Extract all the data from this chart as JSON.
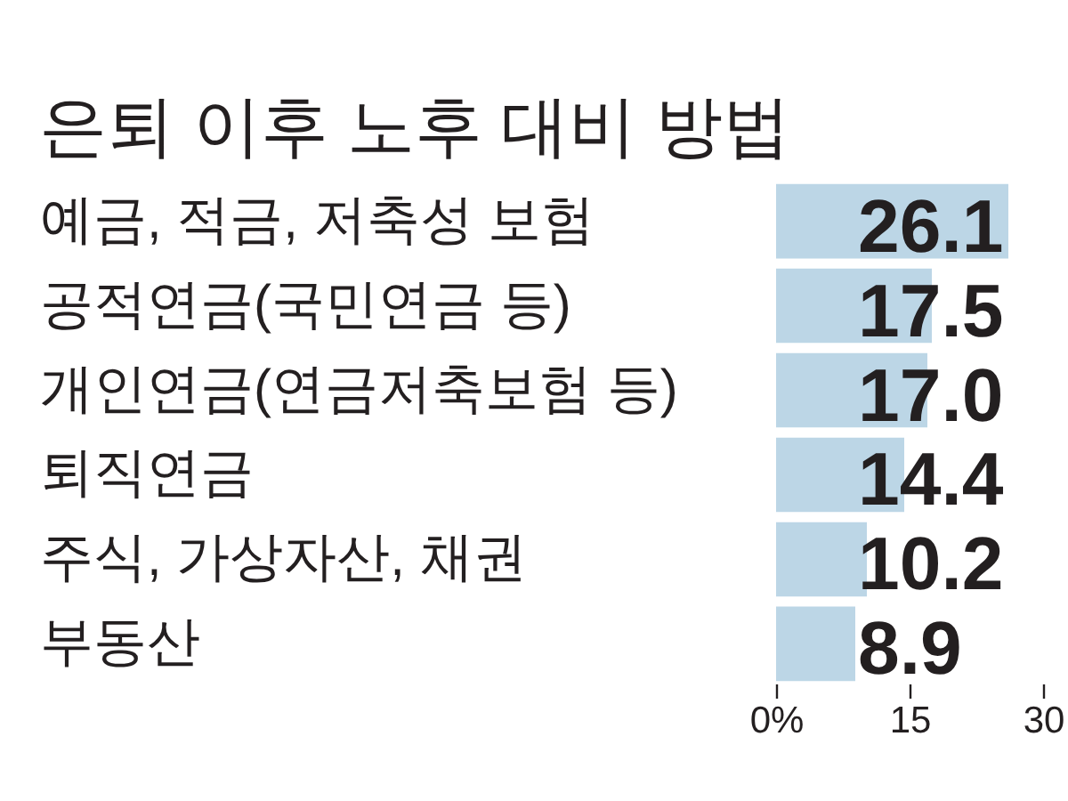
{
  "chart_data": {
    "type": "bar",
    "orientation": "horizontal",
    "title": "은퇴 이후 노후 대비 방법",
    "categories": [
      "예금, 적금, 저축성 보험",
      "공적연금(국민연금 등)",
      "개인연금(연금저축보험 등)",
      "퇴직연금",
      "주식, 가상자산, 채권",
      "부동산"
    ],
    "values": [
      26.1,
      17.5,
      17.0,
      14.4,
      10.2,
      8.9
    ],
    "value_labels": [
      "26.1",
      "17.5",
      "17.0",
      "14.4",
      "10.2",
      "8.9"
    ],
    "color": "#bcd6e6",
    "xlim": [
      0,
      30
    ],
    "xticks": [
      {
        "value": 0,
        "label": "0%"
      },
      15,
      30
    ],
    "grid": false
  }
}
